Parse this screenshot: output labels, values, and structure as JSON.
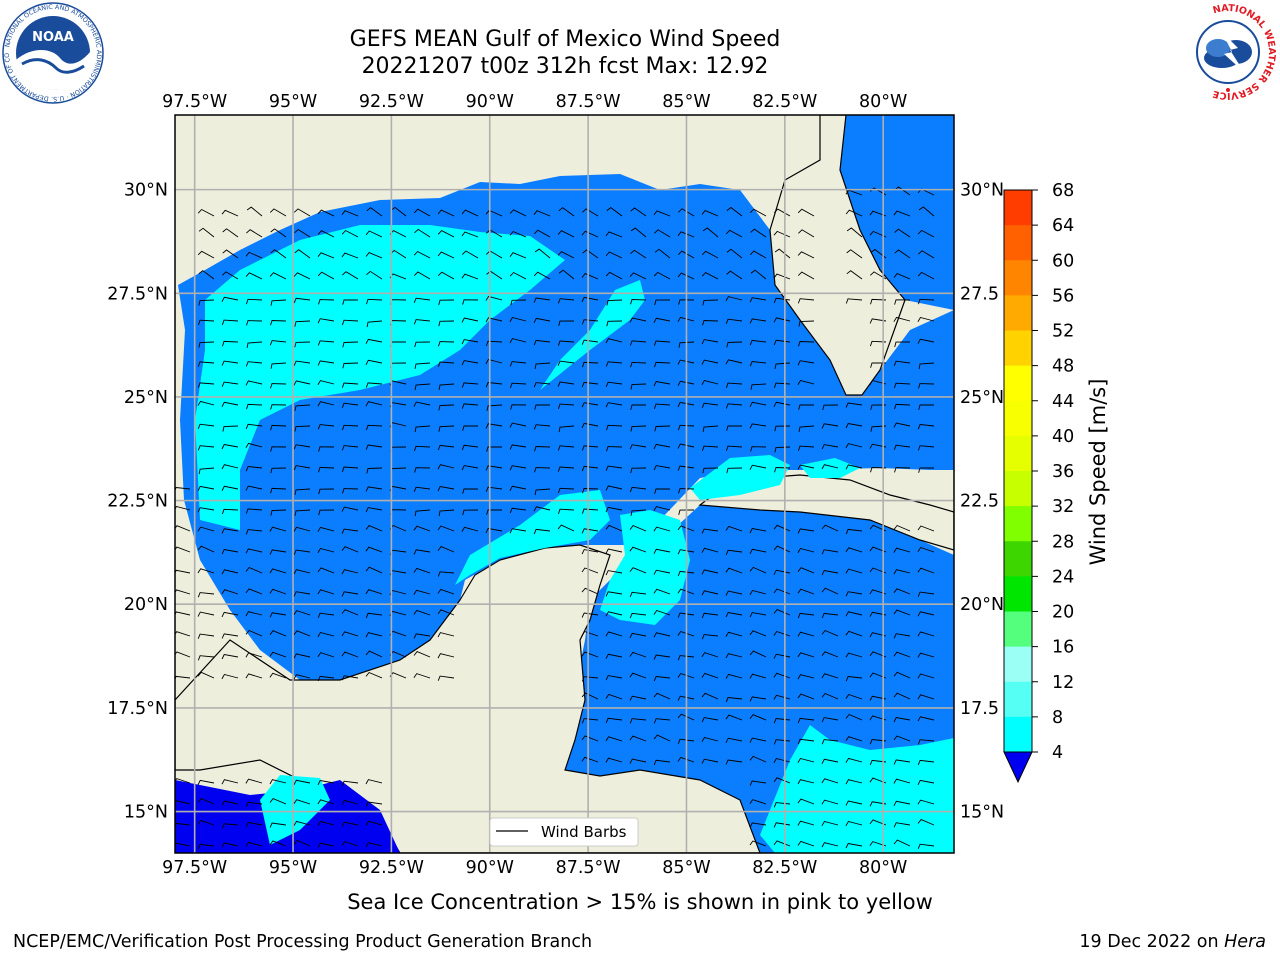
{
  "header": {
    "title_line1": "GEFS MEAN Gulf of Mexico Wind Speed",
    "title_line2": "20221207 t00z 312h fcst   Max: 12.92"
  },
  "map": {
    "lon_labels": [
      "97.5°W",
      "95°W",
      "92.5°W",
      "90°W",
      "87.5°W",
      "85°W",
      "82.5°W",
      "80°W"
    ],
    "lon_values": [
      -97.5,
      -95,
      -92.5,
      -90,
      -87.5,
      -85,
      -82.5,
      -80
    ],
    "lat_labels_left": [
      "30°N",
      "27.5°N",
      "25°N",
      "22.5°N",
      "20°N",
      "17.5°N",
      "15°N"
    ],
    "lat_labels_right": [
      "30°N",
      "27.5",
      "25°N",
      "22.5",
      "20°N",
      "17.5",
      "15°N"
    ],
    "lat_values": [
      30,
      27.5,
      25,
      22.5,
      20,
      17.5,
      15
    ],
    "extent": {
      "lon_min": -98,
      "lon_max": -78.2,
      "lat_min": 14,
      "lat_max": 31.8
    },
    "legend_label": "Wind Barbs",
    "colors": {
      "land": "#eeeedc",
      "c4_8": "#0b7dff",
      "c8_12": "#00ffff",
      "c0_4": "#0000f0",
      "grid": "#b0b0b0",
      "coast": "#000000"
    }
  },
  "colorbar": {
    "label": "Wind Speed [m/s]",
    "ticks": [
      "68",
      "64",
      "60",
      "56",
      "52",
      "48",
      "44",
      "40",
      "36",
      "32",
      "28",
      "24",
      "20",
      "16",
      "12",
      "8",
      "4"
    ],
    "colors": [
      "#ff1a00",
      "#ff3d00",
      "#ff6100",
      "#ff8500",
      "#ffaa00",
      "#ffd200",
      "#ffff00",
      "#f7ff00",
      "#e5ff00",
      "#c8ff00",
      "#7fff00",
      "#3ed600",
      "#00e600",
      "#55ff7e",
      "#9cfff6",
      "#55fff3",
      "#00ffff",
      "#0b7dff"
    ],
    "extend_color": "#0000f0"
  },
  "subtitle": "Sea Ice Concentration > 15% is shown in pink to yellow",
  "footer": {
    "left": "NCEP/EMC/Verification Post Processing Product Generation Branch",
    "right_prefix": "19 Dec 2022 on ",
    "right_host": "Hera"
  },
  "logos": {
    "noaa_text": "NOAA",
    "noaa_ring_text": "NATIONAL OCEANIC AND ATMOSPHERIC ADMINISTRATION · U.S. DEPARTMENT OF COMMERCE",
    "nws_ring_text": "NATIONAL WEATHER SERVICE"
  }
}
